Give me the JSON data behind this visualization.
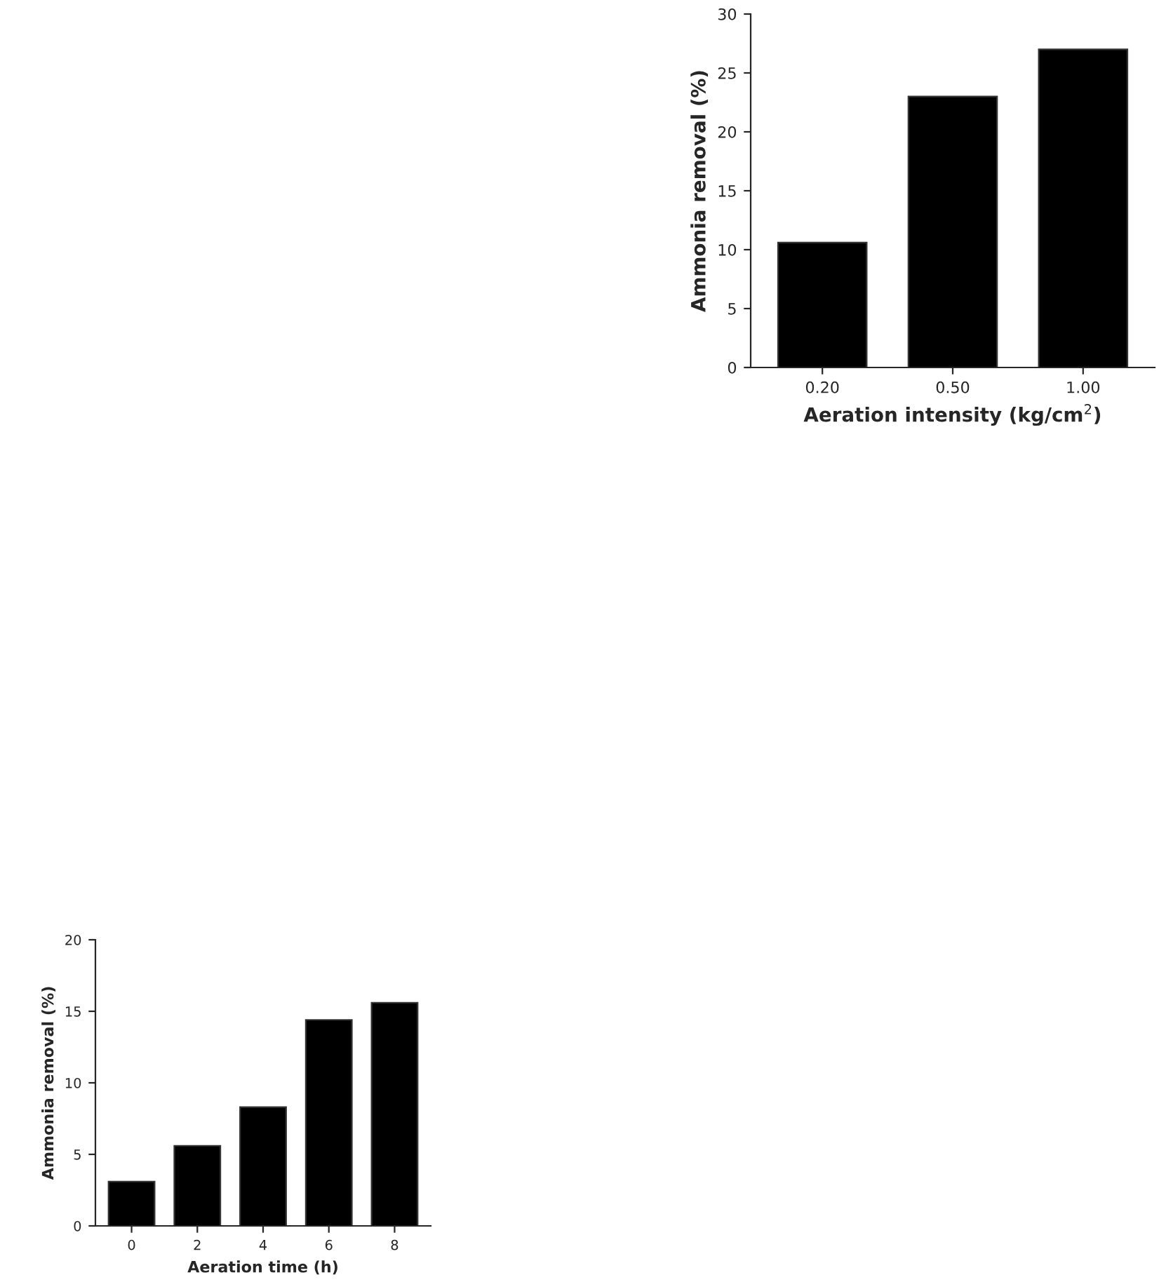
{
  "chart_data": [
    {
      "type": "bar",
      "categories": [
        "0.20",
        "0.50",
        "1.00"
      ],
      "values": [
        10.6,
        23.0,
        27.0
      ],
      "color": "#000000",
      "ylim": [
        0,
        30
      ],
      "yticks": [
        0,
        5,
        10,
        15,
        20,
        25,
        30
      ],
      "xlabel": "Aeration intensity (kg/cm$^{2}$)",
      "ylabel": "Ammonia removal (%)",
      "grid": false,
      "legend": false
    },
    {
      "type": "bar",
      "categories": [
        "0",
        "2",
        "4",
        "6",
        "8"
      ],
      "values": [
        3.1,
        5.6,
        8.3,
        14.4,
        15.6
      ],
      "color": "#000000",
      "ylim": [
        0,
        20
      ],
      "yticks": [
        0,
        5,
        10,
        15,
        20
      ],
      "xlabel": "Aeration time (h)",
      "ylabel": "Ammonia removal (%)",
      "grid": false,
      "legend": false
    }
  ]
}
